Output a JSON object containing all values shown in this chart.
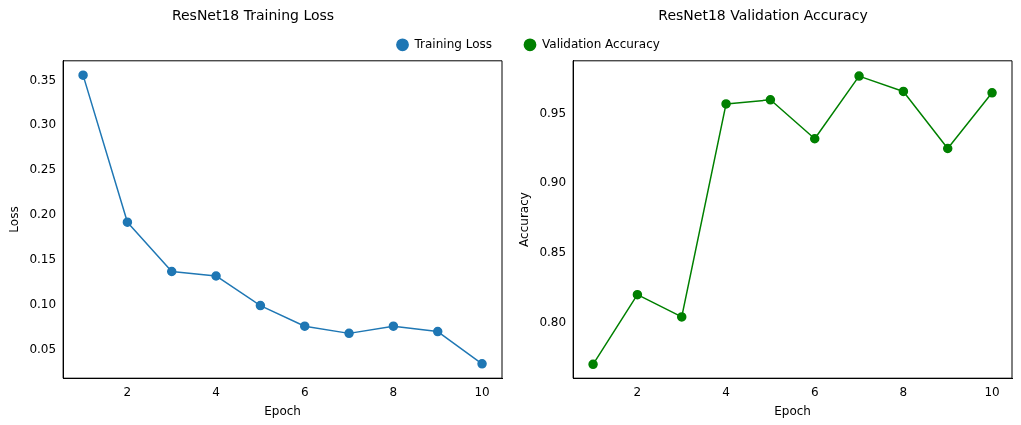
{
  "chart_data": [
    {
      "type": "line",
      "title": "ResNet18 Training Loss",
      "xlabel": "Epoch",
      "ylabel": "Loss",
      "x": [
        1,
        2,
        3,
        4,
        5,
        6,
        7,
        8,
        9,
        10
      ],
      "series": [
        {
          "name": "Training Loss",
          "color": "#1f77b4",
          "values": [
            0.356,
            0.192,
            0.137,
            0.132,
            0.099,
            0.076,
            0.068,
            0.076,
            0.07,
            0.034
          ]
        }
      ],
      "xlim": [
        0.55,
        10.45
      ],
      "xticks": [
        2,
        4,
        6,
        8,
        10
      ],
      "ylim": [
        0.018,
        0.372
      ],
      "yticks": [
        {
          "value": 0.05,
          "label": "0.05"
        },
        {
          "value": 0.1,
          "label": "0.10"
        },
        {
          "value": 0.15,
          "label": "0.15"
        },
        {
          "value": 0.2,
          "label": "0.20"
        },
        {
          "value": 0.25,
          "label": "0.25"
        },
        {
          "value": 0.3,
          "label": "0.30"
        },
        {
          "value": 0.35,
          "label": "0.35"
        }
      ],
      "grid": false,
      "legend": "top right",
      "marker": "circle",
      "line_style": "solid"
    },
    {
      "type": "line",
      "title": "ResNet18 Validation Accuracy",
      "xlabel": "Epoch",
      "ylabel": "Accuracy",
      "x": [
        1,
        2,
        3,
        4,
        5,
        6,
        7,
        8,
        9,
        10
      ],
      "series": [
        {
          "name": "Validation Accuracy",
          "color": "#008000",
          "values": [
            0.77,
            0.82,
            0.804,
            0.957,
            0.96,
            0.932,
            0.977,
            0.966,
            0.925,
            0.965
          ]
        }
      ],
      "xlim": [
        0.55,
        10.45
      ],
      "xticks": [
        2,
        4,
        6,
        8,
        10
      ],
      "ylim": [
        0.76,
        0.988
      ],
      "yticks": [
        {
          "value": 0.8,
          "label": "0.80"
        },
        {
          "value": 0.85,
          "label": "0.85"
        },
        {
          "value": 0.9,
          "label": "0.90"
        },
        {
          "value": 0.95,
          "label": "0.95"
        }
      ],
      "grid": false,
      "legend": "top left",
      "marker": "circle",
      "line_style": "solid"
    }
  ]
}
